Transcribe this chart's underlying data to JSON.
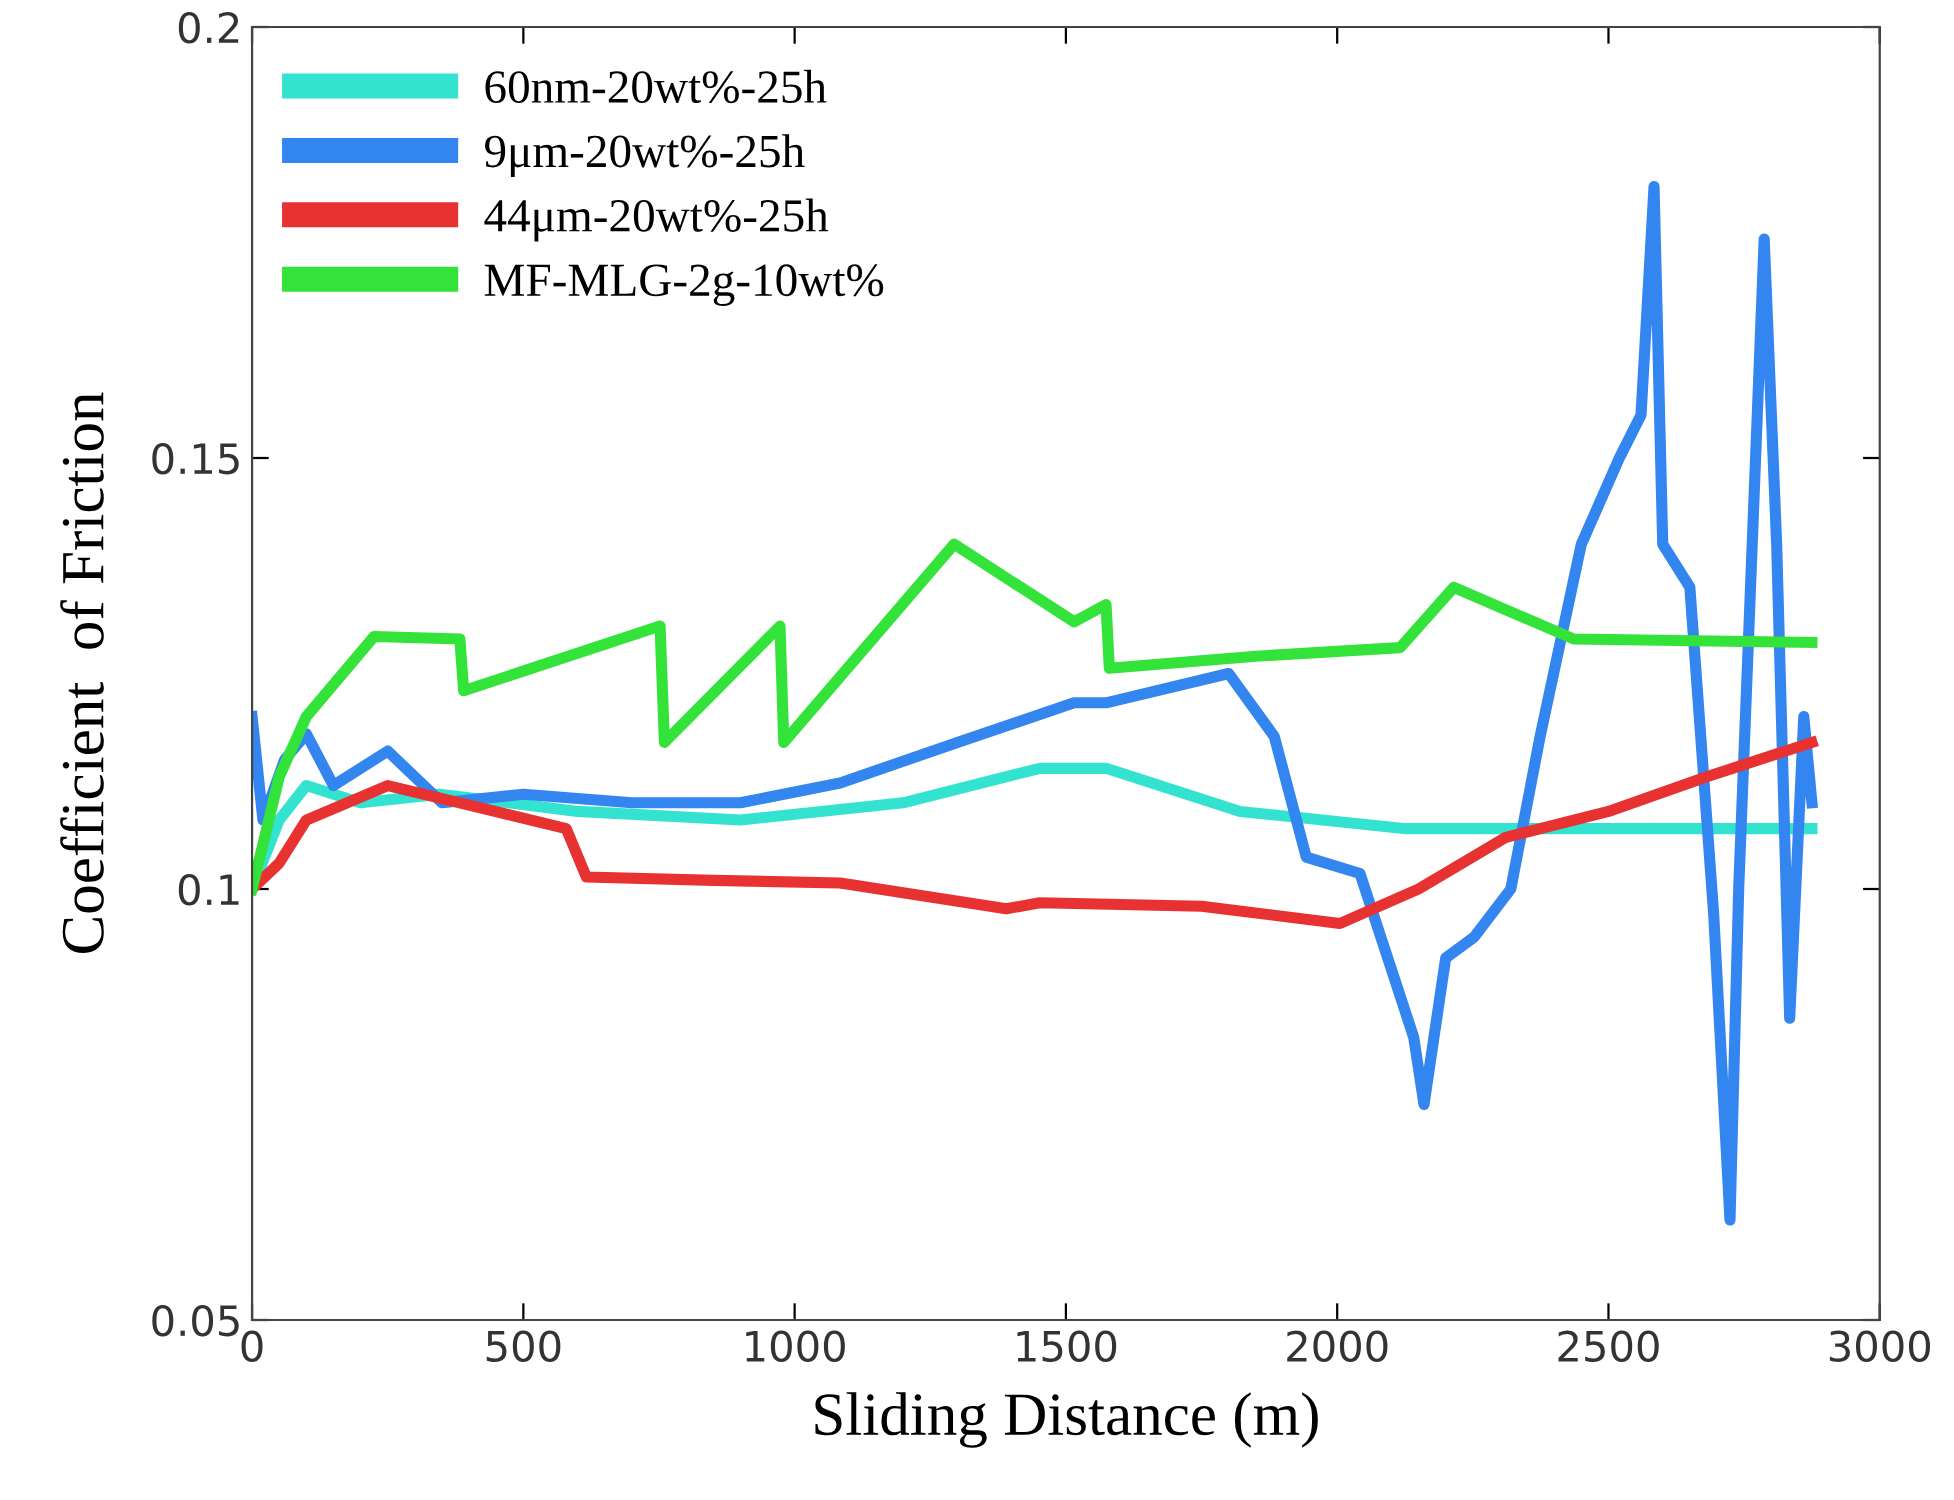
{
  "chart_data": {
    "type": "line",
    "xlabel": "Sliding Distance (m)",
    "ylabel": "Coefficient  of Friction",
    "xlim": [
      0,
      3000
    ],
    "ylim": [
      0.05,
      0.2
    ],
    "xticks": [
      0,
      500,
      1000,
      1500,
      2000,
      2500,
      3000
    ],
    "yticks": [
      0.05,
      0.1,
      0.15,
      0.2
    ],
    "grid": false,
    "legend": "top left",
    "marker": "none",
    "line_style": "solid",
    "series": [
      {
        "name": "60nm-20wt%-25h",
        "color": "#33e3d0",
        "x": [
          0,
          50,
          100,
          200,
          346,
          600,
          900,
          1200,
          1452,
          1574,
          1821,
          2127,
          2400,
          2875
        ],
        "values": [
          0.1,
          0.108,
          0.112,
          0.11,
          0.111,
          0.109,
          0.108,
          0.11,
          0.114,
          0.114,
          0.109,
          0.107,
          0.107,
          0.107
        ]
      },
      {
        "name": "9μm-20wt%-25h",
        "color": "#3385f0",
        "x": [
          0,
          20,
          60,
          100,
          150,
          250,
          350,
          500,
          700,
          900,
          1084,
          1300,
          1515,
          1574,
          1800,
          1884,
          1943,
          2042,
          2141,
          2160,
          2200,
          2252,
          2320,
          2374,
          2450,
          2520,
          2560,
          2584,
          2600,
          2650,
          2694,
          2724,
          2740,
          2787,
          2810,
          2834,
          2860,
          2875
        ],
        "values": [
          0.12,
          0.108,
          0.115,
          0.118,
          0.112,
          0.116,
          0.11,
          0.111,
          0.11,
          0.11,
          0.1123,
          0.117,
          0.1216,
          0.1216,
          0.125,
          0.1177,
          0.1037,
          0.1018,
          0.0828,
          0.075,
          0.092,
          0.0944,
          0.1,
          0.1177,
          0.14,
          0.15,
          0.155,
          0.1815,
          0.14,
          0.135,
          0.097,
          0.0616,
          0.1,
          0.1754,
          0.14,
          0.085,
          0.12,
          0.11
        ]
      },
      {
        "name": "44μm-20wt%-25h",
        "color": "#e83232",
        "x": [
          0,
          50,
          100,
          250,
          383,
          579,
          616,
          850,
          1084,
          1390,
          1452,
          1750,
          2005,
          2150,
          2311,
          2500,
          2680,
          2875
        ],
        "values": [
          0.1,
          0.103,
          0.108,
          0.112,
          0.11,
          0.107,
          0.1014,
          0.101,
          0.1007,
          0.0977,
          0.0984,
          0.098,
          0.096,
          0.1,
          0.106,
          0.109,
          0.113,
          0.117
        ]
      },
      {
        "name": "MF-MLG-2g-10wt%",
        "color": "#33e33a",
        "x": [
          0,
          50,
          100,
          225,
          383,
          390,
          752,
          760,
          973,
          980,
          1294,
          1515,
          1574,
          1580,
          1850,
          2116,
          2215,
          2436,
          2875
        ],
        "values": [
          0.1,
          0.113,
          0.12,
          0.1293,
          0.129,
          0.123,
          0.1305,
          0.117,
          0.1305,
          0.117,
          0.14,
          0.131,
          0.133,
          0.1256,
          0.127,
          0.128,
          0.135,
          0.129,
          0.1286
        ]
      }
    ]
  }
}
